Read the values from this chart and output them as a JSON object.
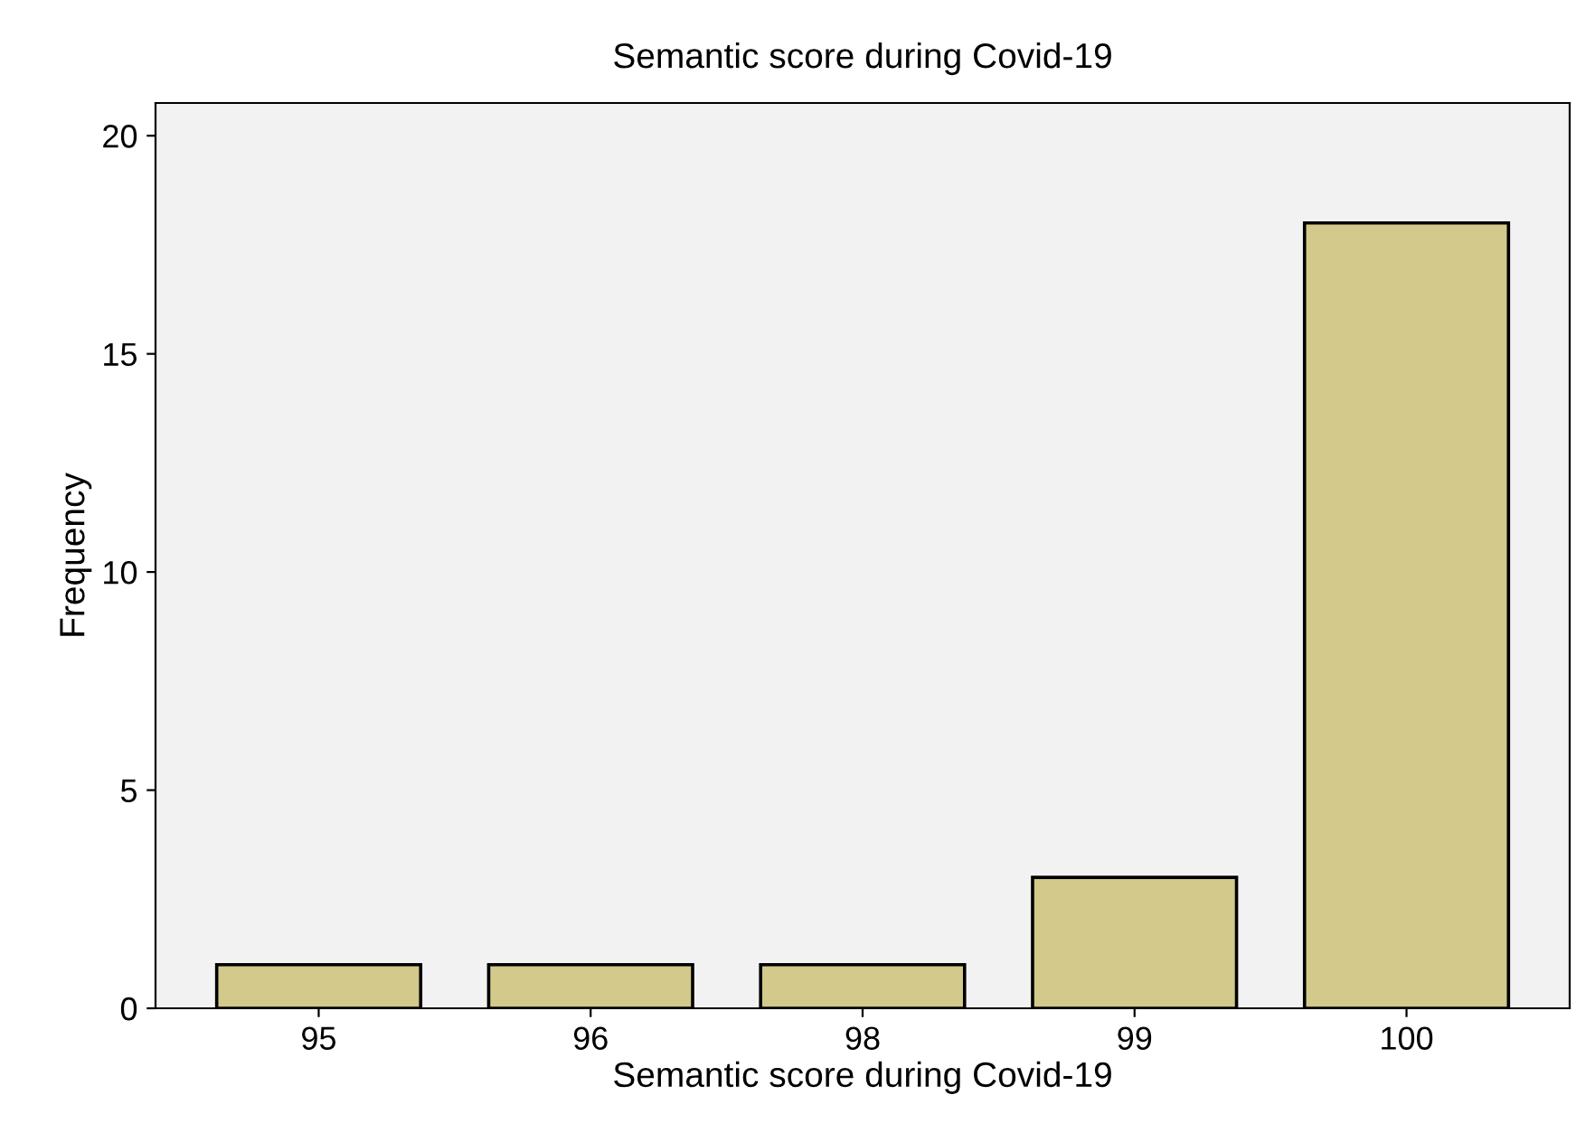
{
  "chart_data": {
    "type": "bar",
    "title": "Semantic score during Covid-19",
    "xlabel": "Semantic score during Covid-19",
    "ylabel": "Frequency",
    "categories": [
      "95",
      "96",
      "98",
      "99",
      "100"
    ],
    "values": [
      1,
      1,
      1,
      3,
      18
    ],
    "color": "#d2c98a",
    "ylim": [
      0,
      20.75
    ],
    "yticks": [
      0,
      5,
      10,
      15,
      20
    ],
    "grid": false
  }
}
